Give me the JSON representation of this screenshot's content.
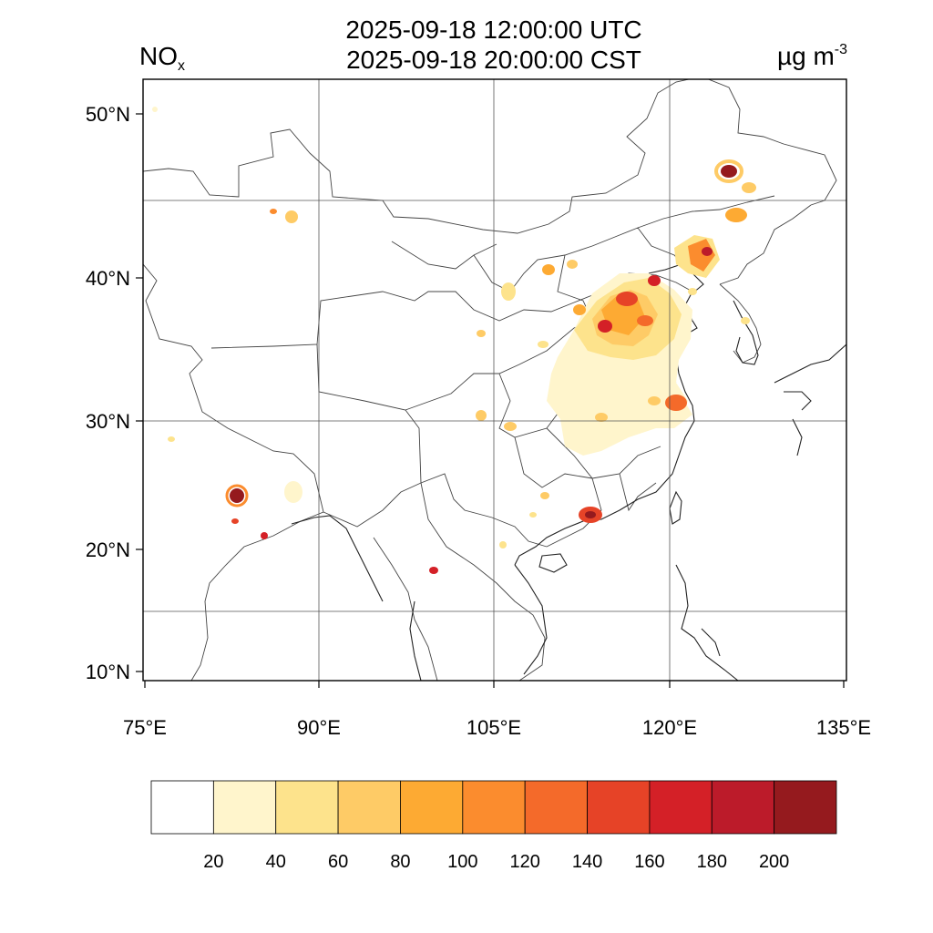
{
  "title": {
    "utc": "2025-09-18 12:00:00 UTC",
    "cst": "2025-09-18 20:00:00 CST"
  },
  "variable": {
    "name": "NO",
    "subscript": "x"
  },
  "unit": {
    "base": "µg m",
    "exponent": "-3"
  },
  "axes": {
    "lon_ticks": [
      "75°E",
      "90°E",
      "105°E",
      "120°E",
      "135°E"
    ],
    "lat_ticks": [
      "50°N",
      "40°N",
      "30°N",
      "20°N",
      "10°N"
    ]
  },
  "colorbar": {
    "labels": [
      "20",
      "40",
      "60",
      "80",
      "100",
      "120",
      "140",
      "160",
      "180",
      "200"
    ],
    "colors": [
      "#ffffff",
      "#fff5cc",
      "#fde38c",
      "#fecb66",
      "#fdaa33",
      "#fb8c2e",
      "#f46a2a",
      "#e64327",
      "#d42027",
      "#bc1b2a",
      "#951a1e"
    ]
  }
}
